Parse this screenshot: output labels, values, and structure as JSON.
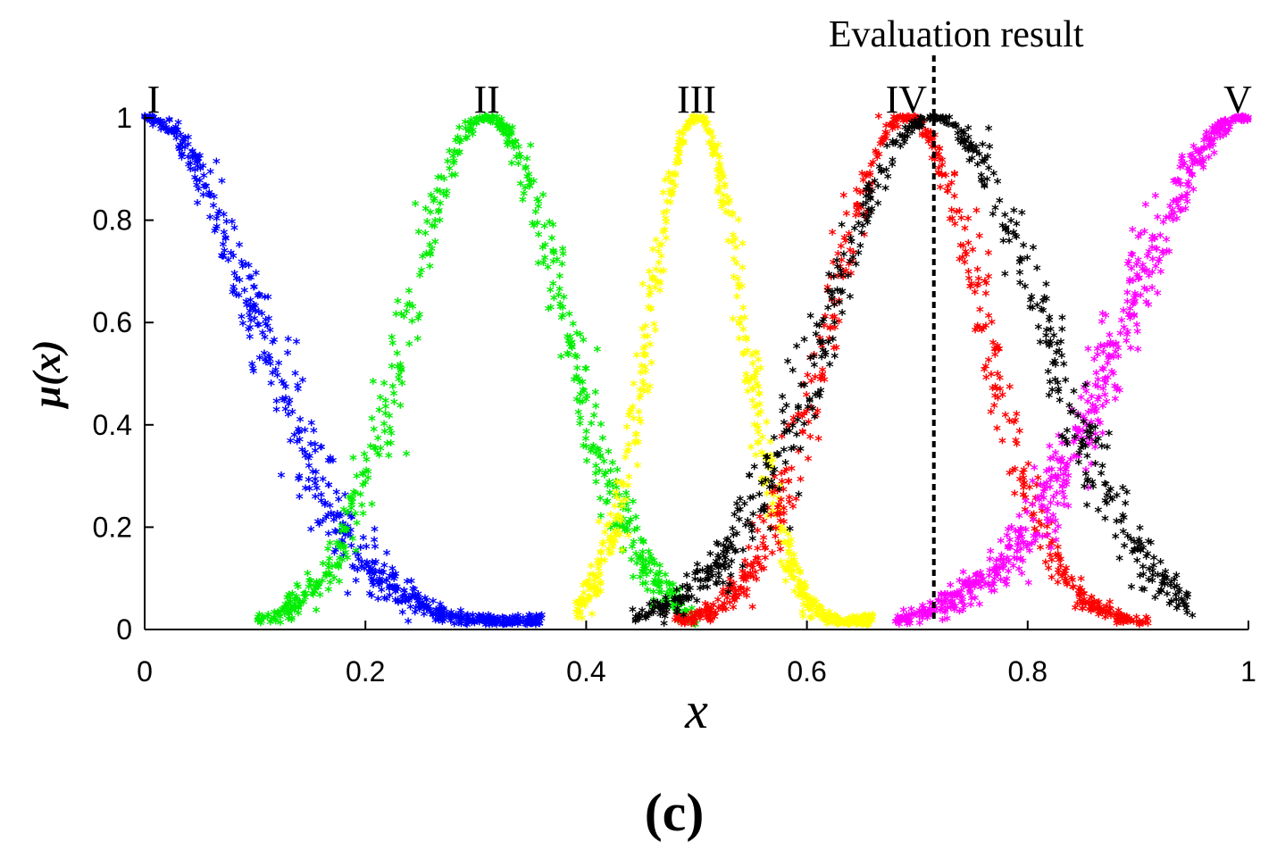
{
  "chart_data": {
    "type": "scatter",
    "title": "",
    "xlabel": "x",
    "ylabel": "μ(x)",
    "xlim": [
      0,
      1
    ],
    "ylim": [
      0,
      1
    ],
    "grid": false,
    "panel_label": "(c)",
    "x_ticks": [
      "0",
      "0.2",
      "0.4",
      "0.6",
      "0.8",
      "1"
    ],
    "y_ticks": [
      "0",
      "0.2",
      "0.4",
      "0.6",
      "0.8",
      "1"
    ],
    "series": [
      {
        "name": "I",
        "color": "#0000ff",
        "shape": "half-normal",
        "center": 0.0,
        "sigma": 0.1,
        "x_range": [
          0.0,
          0.36
        ],
        "marker": "*"
      },
      {
        "name": "II",
        "color": "#00ee00",
        "shape": "normal",
        "center": 0.31,
        "sigma": 0.07,
        "x_range": [
          0.1,
          0.5
        ],
        "marker": "*"
      },
      {
        "name": "III",
        "color": "#ffff00",
        "shape": "normal",
        "center": 0.5,
        "sigma": 0.042,
        "x_range": [
          0.39,
          0.66
        ],
        "marker": "*"
      },
      {
        "name": "IV",
        "color": "#ff0000",
        "shape": "normal",
        "center": 0.69,
        "sigma": 0.068,
        "x_range": [
          0.48,
          0.91
        ],
        "marker": "*"
      },
      {
        "name": "V",
        "color": "#ff00ff",
        "shape": "half-normal",
        "center": 1.0,
        "sigma": 0.11,
        "x_range": [
          0.68,
          1.0
        ],
        "marker": "*"
      },
      {
        "name": "Evaluation",
        "color": "#000000",
        "shape": "normal",
        "center": 0.715,
        "sigma": 0.095,
        "x_range": [
          0.44,
          0.95
        ],
        "marker": "*"
      }
    ],
    "grade_labels": [
      {
        "text": "I",
        "x": 0.0
      },
      {
        "text": "II",
        "x": 0.31
      },
      {
        "text": "III",
        "x": 0.5
      },
      {
        "text": "IV",
        "x": 0.69
      },
      {
        "text": "V",
        "x": 1.0
      }
    ],
    "annotation": {
      "text": "Evaluation result",
      "x": 0.715,
      "style": "dotted vertical line"
    }
  }
}
